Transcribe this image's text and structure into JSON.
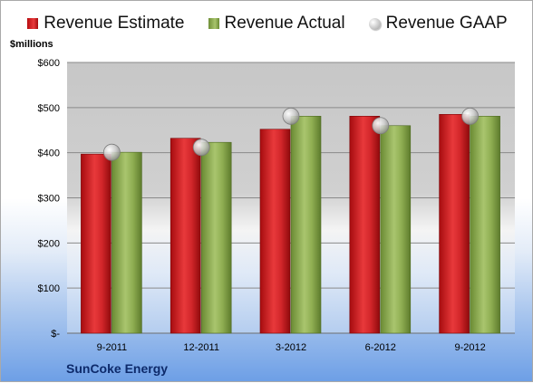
{
  "legend": {
    "estimate": "Revenue Estimate",
    "actual": "Revenue Actual",
    "gaap": "Revenue GAAP"
  },
  "unit_label": "$millions",
  "company": "SunCoke Energy",
  "colors": {
    "estimate": "#cc1f22",
    "actual": "#8fae52",
    "gaap": "#c8c8c8",
    "company_text": "#0d2a6b"
  },
  "chart_data": {
    "type": "bar",
    "categories": [
      "9-2011",
      "12-2011",
      "3-2012",
      "6-2012",
      "9-2012"
    ],
    "series": [
      {
        "name": "Revenue Estimate",
        "values": [
          397,
          432,
          452,
          481,
          485
        ]
      },
      {
        "name": "Revenue Actual",
        "values": [
          401,
          423,
          481,
          460,
          481
        ]
      },
      {
        "name": "Revenue GAAP",
        "type": "scatter",
        "values": [
          401,
          412,
          481,
          460,
          481
        ]
      }
    ],
    "ylabel": "$millions",
    "ylim": [
      0,
      600
    ],
    "yticks": [
      0,
      100,
      200,
      300,
      400,
      500,
      600
    ],
    "ytick_labels": [
      "$-",
      "$100",
      "$200",
      "$300",
      "$400",
      "$500",
      "$600"
    ],
    "grid": true,
    "legend_position": "top"
  }
}
